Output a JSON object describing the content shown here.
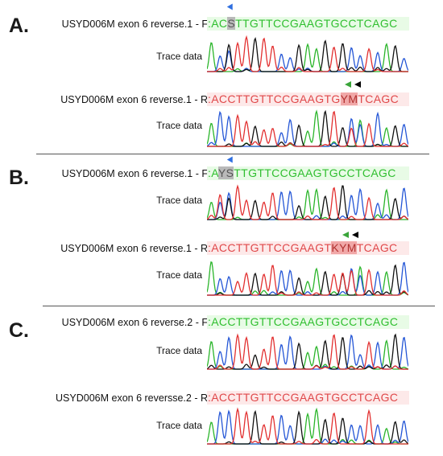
{
  "panels": [
    {
      "letter": "A.",
      "rows": [
        {
          "label": "USYD006M exon 6 reverse.1 - F",
          "pre": ":AC",
          "mid": "S",
          "post": "TTGTTCCGAAGTGCCTCAGC",
          "strand": "fwd",
          "trace_label": "Trace data"
        },
        {
          "label": "USYD006M exon 6 reverse.1 - R",
          "pre": ":ACCTTGTTCCGAAGTG",
          "mid": "YM",
          "post": "TCAGC",
          "strand": "rev",
          "trace_label": "Trace data"
        }
      ]
    },
    {
      "letter": "B.",
      "rows": [
        {
          "label": "USYD006M exon 6 reverse.1 - F",
          "pre": ":A",
          "mid": "YS",
          "post": "TTGTTCCGAAGTGCCTCAGC",
          "strand": "fwd",
          "trace_label": "Trace data"
        },
        {
          "label": "USYD006M exon 6 reverse.1 - R",
          "pre": ":ACCTTGTTCCGAAGT",
          "mid": "KYM",
          "post": "TCAGC",
          "strand": "rev",
          "trace_label": "Trace data"
        }
      ]
    },
    {
      "letter": "C.",
      "rows": [
        {
          "label": "USYD006M exon 6 reverse.2 - F",
          "pre": ":ACCTTGTTCCGAAGTGCCTCAGC",
          "mid": "",
          "post": "",
          "strand": "fwd",
          "trace_label": "Trace data"
        },
        {
          "label": "USYD006M exon 6 reversse.2 - R",
          "pre": ":ACCTTGTTCCGAAGTGCCTCAGC",
          "mid": "",
          "post": "",
          "strand": "rev",
          "trace_label": "Trace data"
        }
      ]
    }
  ],
  "colors": {
    "A": "#2ab52a",
    "C": "#2456d6",
    "G": "#111111",
    "T": "#e23030",
    "fwd_text": "#2fbf2f",
    "rev_text": "#e0484a",
    "marker_blue": "#2f6fe0",
    "marker_green": "#3aa53a",
    "marker_black": "#000000"
  },
  "trace_sequences": [
    "ACSTTGTTCCGAAGTGCCTCAGC",
    "ACCTTGTTCCGAAGTGYMTCAGC",
    "AYSTTGTTCCGAAGTGCCTCAGC",
    "ACCTTGTTCCGAAGTKYMTCAGC",
    "ACCTTGTTCCGAAGTGCCTCAGC",
    "ACCTTGTTCCGAAGTGCCTCAGC"
  ]
}
